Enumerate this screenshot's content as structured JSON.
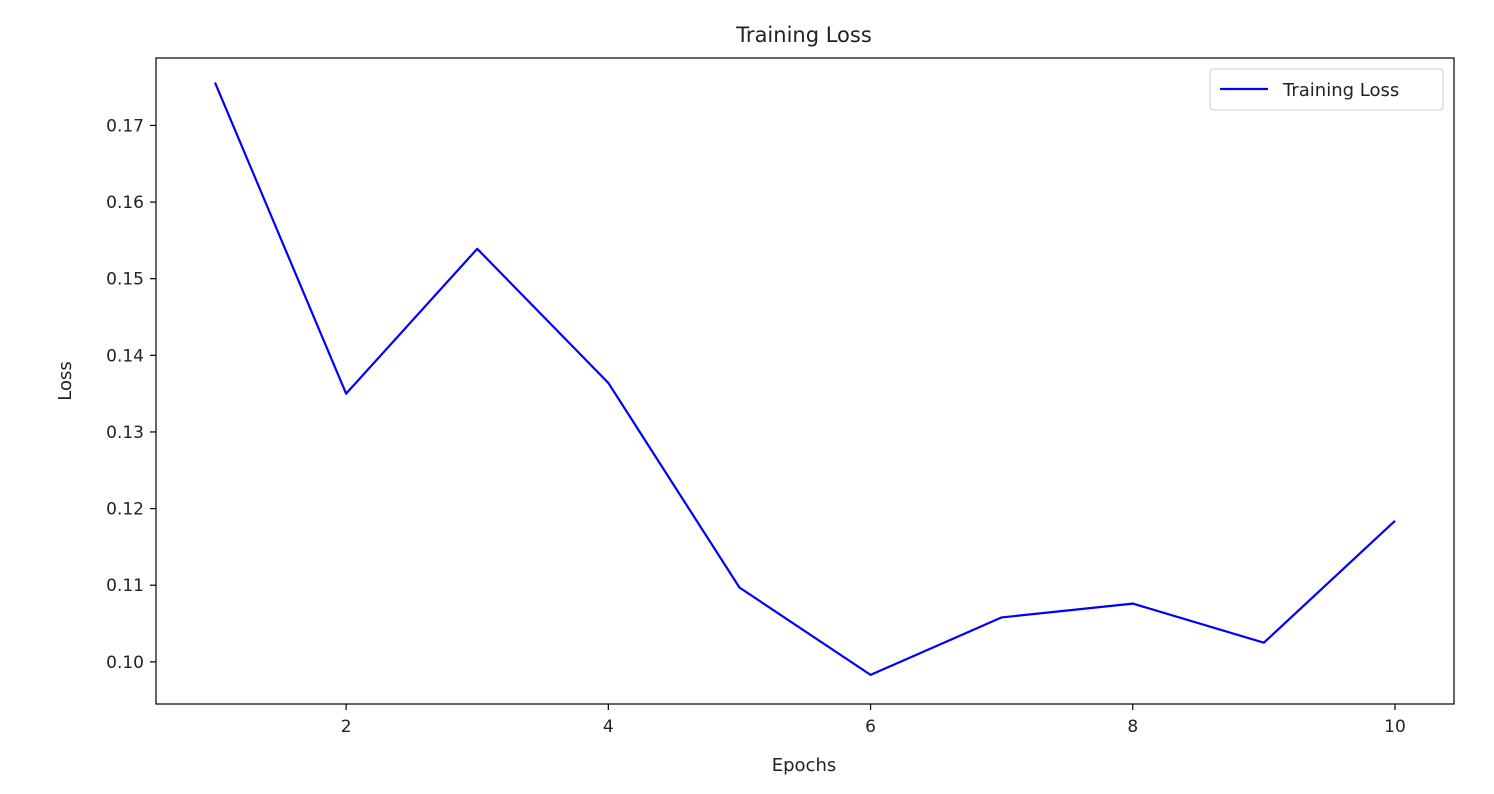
{
  "chart_data": {
    "type": "line",
    "title": "Training Loss",
    "xlabel": "Epochs",
    "ylabel": "Loss",
    "x": [
      1,
      2,
      3,
      4,
      5,
      6,
      7,
      8,
      9,
      10
    ],
    "series": [
      {
        "name": "Training Loss",
        "color": "#0000ff",
        "values": [
          0.1756,
          0.135,
          0.1539,
          0.1364,
          0.1097,
          0.0983,
          0.1058,
          0.1076,
          0.1025,
          0.1184
        ]
      }
    ],
    "xlim": [
      0.55,
      10.45
    ],
    "ylim": [
      0.0945,
      0.1788
    ],
    "xticks": [
      2,
      4,
      6,
      8,
      10
    ],
    "yticks": [
      0.1,
      0.11,
      0.12,
      0.13,
      0.14,
      0.15,
      0.16,
      0.17
    ],
    "xtick_labels": [
      "2",
      "4",
      "6",
      "8",
      "10"
    ],
    "ytick_labels": [
      "0.10",
      "0.11",
      "0.12",
      "0.13",
      "0.14",
      "0.15",
      "0.16",
      "0.17"
    ],
    "grid": false,
    "legend_position": "upper right"
  }
}
